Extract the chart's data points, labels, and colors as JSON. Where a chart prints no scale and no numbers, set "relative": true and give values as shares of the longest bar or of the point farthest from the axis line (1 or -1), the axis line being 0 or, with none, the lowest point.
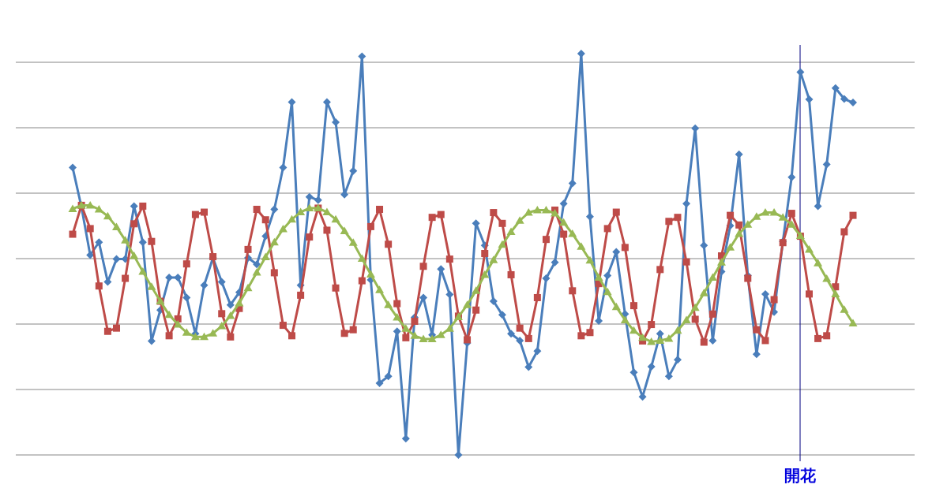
{
  "chart_data": {
    "type": "line",
    "relative": true,
    "grid": "y",
    "line_style": "solid",
    "categories": [
      null,
      null,
      null,
      null,
      null,
      null,
      null,
      null,
      null,
      null,
      null,
      null,
      null,
      null,
      null,
      null,
      null,
      null,
      null,
      null,
      null,
      null,
      null,
      null,
      null,
      null,
      null,
      null,
      null,
      null,
      null,
      null,
      null,
      null,
      null,
      null,
      null,
      null,
      null,
      null,
      null,
      null,
      null,
      null,
      null,
      null,
      null,
      null,
      null,
      null,
      null,
      null,
      null,
      null,
      null,
      null,
      null,
      null,
      null,
      null,
      null,
      null,
      null,
      null,
      null,
      null,
      null,
      null,
      null,
      null,
      null,
      null,
      null,
      null,
      null,
      null,
      null,
      null,
      null,
      null,
      null,
      null,
      null,
      null,
      null,
      null,
      null,
      null,
      null,
      null
    ],
    "series": [
      {
        "color": "#4a7ebb",
        "marker": "diamond",
        "values": [
          0.716,
          0.618,
          0.498,
          0.53,
          0.431,
          0.488,
          0.488,
          0.62,
          0.53,
          0.284,
          0.361,
          0.442,
          0.442,
          0.392,
          0.302,
          0.423,
          0.491,
          0.431,
          0.374,
          0.405,
          0.491,
          0.475,
          0.545,
          0.612,
          0.716,
          0.879,
          0.423,
          0.643,
          0.635,
          0.879,
          0.829,
          0.649,
          0.708,
          0.993,
          0.436,
          0.179,
          0.196,
          0.308,
          0.041,
          0.343,
          0.392,
          0.299,
          0.463,
          0.4,
          0,
          0.279,
          0.577,
          0.522,
          0.383,
          0.349,
          0.302,
          0.285,
          0.219,
          0.259,
          0.44,
          0.48,
          0.626,
          0.677,
          1,
          0.594,
          0.334,
          0.447,
          0.506,
          0.351,
          0.206,
          0.145,
          0.22,
          0.302,
          0.196,
          0.237,
          0.626,
          0.814,
          0.522,
          0.285,
          0.457,
          0.571,
          0.749,
          0.447,
          0.251,
          0.401,
          0.356,
          0.532,
          0.692,
          0.954,
          0.886,
          0.62,
          0.724,
          0.914,
          0.887,
          0.878
        ]
      },
      {
        "color": "#be4b48",
        "marker": "square",
        "values": [
          0.55,
          0.622,
          0.564,
          0.421,
          0.308,
          0.316,
          0.44,
          0.576,
          0.62,
          0.532,
          0.383,
          0.297,
          0.339,
          0.476,
          0.599,
          0.605,
          0.494,
          0.352,
          0.294,
          0.365,
          0.512,
          0.612,
          0.586,
          0.454,
          0.323,
          0.297,
          0.398,
          0.543,
          0.615,
          0.56,
          0.416,
          0.303,
          0.312,
          0.434,
          0.569,
          0.612,
          0.525,
          0.377,
          0.292,
          0.333,
          0.47,
          0.592,
          0.599,
          0.488,
          0.346,
          0.287,
          0.361,
          0.502,
          0.604,
          0.577,
          0.449,
          0.316,
          0.29,
          0.392,
          0.537,
          0.61,
          0.55,
          0.409,
          0.297,
          0.305,
          0.427,
          0.564,
          0.605,
          0.517,
          0.372,
          0.284,
          0.325,
          0.462,
          0.582,
          0.592,
          0.481,
          0.338,
          0.281,
          0.351,
          0.496,
          0.597,
          0.573,
          0.44,
          0.312,
          0.285,
          0.387,
          0.529,
          0.602,
          0.545,
          0.401,
          0.29,
          0.297,
          0.419,
          0.556,
          0.597
        ]
      },
      {
        "color": "#98b954",
        "marker": "triangle",
        "values": [
          0.613,
          0.622,
          0.622,
          0.612,
          0.595,
          0.568,
          0.535,
          0.496,
          0.457,
          0.419,
          0.383,
          0.349,
          0.325,
          0.305,
          0.294,
          0.294,
          0.303,
          0.321,
          0.347,
          0.378,
          0.416,
          0.455,
          0.493,
          0.53,
          0.563,
          0.587,
          0.605,
          0.615,
          0.615,
          0.605,
          0.587,
          0.558,
          0.529,
          0.489,
          0.45,
          0.411,
          0.374,
          0.343,
          0.315,
          0.297,
          0.289,
          0.289,
          0.299,
          0.315,
          0.344,
          0.374,
          0.409,
          0.449,
          0.486,
          0.524,
          0.556,
          0.584,
          0.604,
          0.61,
          0.61,
          0.602,
          0.579,
          0.551,
          0.519,
          0.485,
          0.442,
          0.406,
          0.369,
          0.336,
          0.31,
          0.292,
          0.282,
          0.285,
          0.29,
          0.31,
          0.336,
          0.367,
          0.403,
          0.442,
          0.48,
          0.517,
          0.551,
          0.574,
          0.594,
          0.604,
          0.604,
          0.592,
          0.574,
          0.546,
          0.512,
          0.478,
          0.439,
          0.401,
          0.362,
          0.328
        ]
      }
    ],
    "annotations": [
      "開花"
    ]
  }
}
